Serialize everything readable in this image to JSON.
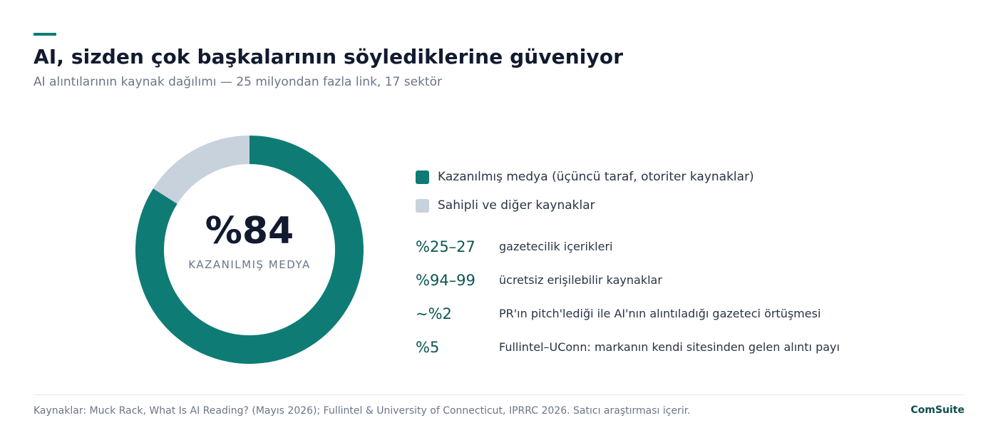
{
  "header": {
    "title": "AI, sizden çok başkalarının söylediklerine güveniyor",
    "subtitle": "AI alıntılarının kaynak dağılımı — 25 milyondan fazla link, 17 sektör"
  },
  "chart_data": {
    "type": "pie",
    "variant": "donut",
    "title": "AI, sizden çok başkalarının söylediklerine güveniyor",
    "subtitle": "AI alıntılarının kaynak dağılımı — 25 milyondan fazla link, 17 sektör",
    "series": [
      {
        "name": "Kazanılmış medya (üçüncü taraf, otoriter kaynaklar)",
        "value": 84,
        "color": "#0e7c74"
      },
      {
        "name": "Sahipli ve diğer kaynaklar",
        "value": 16,
        "color": "#c8d2dd"
      }
    ],
    "center_value": "%84",
    "center_label": "KAZANILMIŞ MEDYA",
    "legend_placement": "right"
  },
  "stats": [
    {
      "value": "%25–27",
      "label": "gazetecilik içerikleri"
    },
    {
      "value": "%94–99",
      "label": "ücretsiz erişilebilir kaynaklar"
    },
    {
      "value": "~%2",
      "label": "PR'ın pitch'lediği ile AI'nın alıntıladığı gazeteci örtüşmesi"
    },
    {
      "value": "%5",
      "label": "Fullintel–UConn: markanın kendi sitesinden gelen alıntı payı"
    }
  ],
  "footer": {
    "source": "Kaynaklar: Muck Rack, What Is AI Reading? (Mayıs 2026); Fullintel & University of Connecticut, IPRRC 2026. Satıcı araştırması içerir.",
    "brand": "ComSuite"
  },
  "colors": {
    "accent": "#0e7c74",
    "secondary": "#c8d2dd",
    "stat_text": "#0c5750"
  }
}
